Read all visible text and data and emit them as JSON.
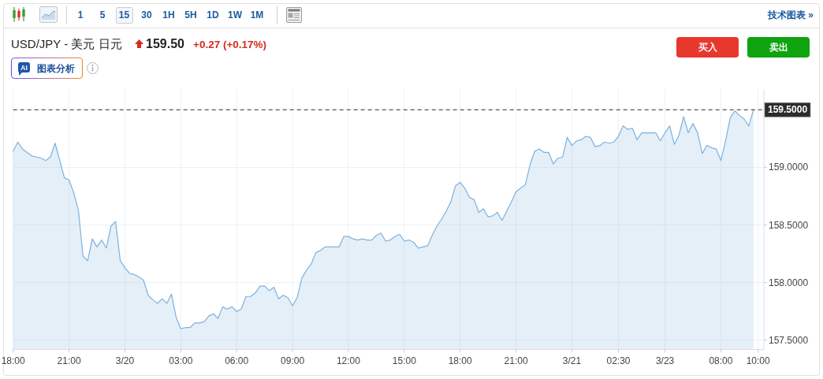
{
  "chart_data": {
    "type": "area",
    "title": "USD/JPY - 美元 日元",
    "categories": [
      "18:00",
      null,
      null,
      null,
      null,
      null,
      null,
      null,
      null,
      null,
      null,
      null,
      "21:00",
      null,
      null,
      null,
      null,
      null,
      null,
      null,
      null,
      null,
      null,
      null,
      "3/20",
      null,
      null,
      null,
      null,
      null,
      null,
      null,
      null,
      null,
      null,
      null,
      "03:00",
      null,
      null,
      null,
      null,
      null,
      null,
      null,
      null,
      null,
      null,
      null,
      "06:00",
      null,
      null,
      null,
      null,
      null,
      null,
      null,
      null,
      null,
      null,
      null,
      "09:00",
      null,
      null,
      null,
      null,
      null,
      null,
      null,
      null,
      null,
      null,
      null,
      "12:00",
      null,
      null,
      null,
      null,
      null,
      null,
      null,
      null,
      null,
      null,
      null,
      "15:00",
      null,
      null,
      null,
      null,
      null,
      null,
      null,
      null,
      null,
      null,
      null,
      "18:00",
      null,
      null,
      null,
      null,
      null,
      null,
      null,
      null,
      null,
      null,
      null,
      "21:00",
      null,
      null,
      null,
      null,
      null,
      null,
      null,
      null,
      null,
      null,
      null,
      "3/21",
      null,
      null,
      null,
      null,
      null,
      null,
      null,
      null,
      null,
      "02:30",
      null,
      null,
      null,
      null,
      null,
      null,
      null,
      null,
      null,
      "3/23",
      null,
      null,
      null,
      null,
      null,
      null,
      null,
      null,
      null,
      null,
      null,
      "08:00",
      null,
      null,
      null,
      null,
      null,
      null,
      null,
      "10:00"
    ],
    "values": [
      159.14,
      159.22,
      159.16,
      159.13,
      159.1,
      159.09,
      159.08,
      159.06,
      159.09,
      159.21,
      159.06,
      158.91,
      158.89,
      158.78,
      158.63,
      158.23,
      158.19,
      158.38,
      158.31,
      158.37,
      158.3,
      158.49,
      158.53,
      158.19,
      158.13,
      158.08,
      158.07,
      158.05,
      158.02,
      157.89,
      157.85,
      157.82,
      157.86,
      157.82,
      157.9,
      157.7,
      157.6,
      157.61,
      157.61,
      157.65,
      157.65,
      157.66,
      157.71,
      157.73,
      157.69,
      157.79,
      157.77,
      157.79,
      157.75,
      157.77,
      157.88,
      157.88,
      157.91,
      157.97,
      157.97,
      157.93,
      157.96,
      157.86,
      157.89,
      157.87,
      157.8,
      157.87,
      158.04,
      158.11,
      158.16,
      158.26,
      158.28,
      158.31,
      158.31,
      158.31,
      158.31,
      158.4,
      158.4,
      158.38,
      158.37,
      158.38,
      158.37,
      158.37,
      158.41,
      158.43,
      158.36,
      158.37,
      158.4,
      158.42,
      158.36,
      158.37,
      158.35,
      158.3,
      158.31,
      158.32,
      158.41,
      158.49,
      158.55,
      158.62,
      158.7,
      158.84,
      158.87,
      158.82,
      158.74,
      158.72,
      158.61,
      158.64,
      158.57,
      158.58,
      158.61,
      158.54,
      158.62,
      158.7,
      158.79,
      158.82,
      158.85,
      159.02,
      159.14,
      159.16,
      159.13,
      159.13,
      159.03,
      159.08,
      159.09,
      159.26,
      159.19,
      159.23,
      159.24,
      159.27,
      159.26,
      159.18,
      159.19,
      159.22,
      159.21,
      159.22,
      159.27,
      159.36,
      159.33,
      159.34,
      159.24,
      159.3,
      159.3,
      159.3,
      159.3,
      159.23,
      159.3,
      159.36,
      159.2,
      159.28,
      159.44,
      159.3,
      159.38,
      159.3,
      159.12,
      159.19,
      159.17,
      159.16,
      159.06,
      159.23,
      159.43,
      159.49,
      159.45,
      159.42,
      159.36,
      159.5,
      null
    ],
    "color": "#7db1dd",
    "ylim": [
      157.42,
      159.68
    ],
    "yticks": [
      {
        "value": 157.5,
        "label": "157.5000"
      },
      {
        "value": 158,
        "label": "158.0000"
      },
      {
        "value": 158.5,
        "label": "158.5000"
      },
      {
        "value": 159,
        "label": "159.0000"
      }
    ],
    "grid": true,
    "ref_lines": [
      {
        "axis": "y",
        "value": 159.5,
        "label": "159.5000",
        "color": "#2b2b2b",
        "line_style": "dashed"
      }
    ],
    "annotations": [
      "159.50",
      "+0.27 (+0.17%)",
      "AI",
      "图表分析",
      "买入",
      "卖出",
      "1 5 15 30 1H 5H 1D 1W 1M",
      "技术图表 »"
    ]
  }
}
